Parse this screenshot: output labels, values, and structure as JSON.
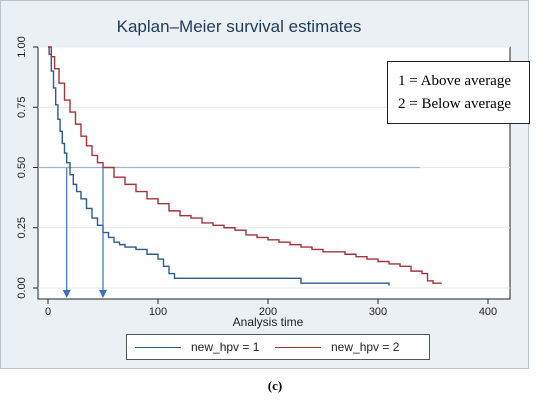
{
  "chart_data": {
    "type": "line",
    "title": "Kaplan–Meier survival estimates",
    "xlabel": "Analysis time",
    "ylabel": "",
    "xlim": [
      0,
      400
    ],
    "ylim": [
      0,
      1
    ],
    "x_ticks": [
      "0",
      "100",
      "200",
      "300",
      "400"
    ],
    "y_ticks": [
      "0.00",
      "0.25",
      "0.50",
      "0.75",
      "1.00"
    ],
    "x_tick_values": [
      0,
      100,
      200,
      300,
      400
    ],
    "y_tick_values": [
      0,
      0.25,
      0.5,
      0.75,
      1.0
    ],
    "grid": true,
    "series": [
      {
        "name": "new_hpv = 1",
        "color": "#2b5b8a",
        "points": [
          [
            0,
            1.0
          ],
          [
            1,
            0.97
          ],
          [
            3,
            0.9
          ],
          [
            5,
            0.83
          ],
          [
            7,
            0.76
          ],
          [
            9,
            0.7
          ],
          [
            11,
            0.65
          ],
          [
            13,
            0.6
          ],
          [
            15,
            0.56
          ],
          [
            17,
            0.52
          ],
          [
            20,
            0.47
          ],
          [
            23,
            0.43
          ],
          [
            26,
            0.4
          ],
          [
            30,
            0.37
          ],
          [
            35,
            0.33
          ],
          [
            40,
            0.29
          ],
          [
            45,
            0.26
          ],
          [
            50,
            0.23
          ],
          [
            55,
            0.21
          ],
          [
            60,
            0.19
          ],
          [
            65,
            0.18
          ],
          [
            70,
            0.17
          ],
          [
            80,
            0.16
          ],
          [
            90,
            0.14
          ],
          [
            100,
            0.12
          ],
          [
            105,
            0.09
          ],
          [
            110,
            0.06
          ],
          [
            115,
            0.04
          ],
          [
            130,
            0.04
          ],
          [
            200,
            0.04
          ],
          [
            228,
            0.04
          ],
          [
            230,
            0.02
          ],
          [
            300,
            0.02
          ],
          [
            310,
            0.01
          ]
        ]
      },
      {
        "name": "new_hpv = 2",
        "color": "#a5333a",
        "points": [
          [
            0,
            1.0
          ],
          [
            3,
            0.96
          ],
          [
            6,
            0.91
          ],
          [
            10,
            0.85
          ],
          [
            15,
            0.78
          ],
          [
            20,
            0.73
          ],
          [
            25,
            0.68
          ],
          [
            30,
            0.63
          ],
          [
            35,
            0.59
          ],
          [
            40,
            0.55
          ],
          [
            45,
            0.52
          ],
          [
            50,
            0.5
          ],
          [
            60,
            0.46
          ],
          [
            70,
            0.43
          ],
          [
            80,
            0.4
          ],
          [
            90,
            0.37
          ],
          [
            100,
            0.35
          ],
          [
            110,
            0.32
          ],
          [
            120,
            0.3
          ],
          [
            130,
            0.29
          ],
          [
            140,
            0.27
          ],
          [
            150,
            0.26
          ],
          [
            160,
            0.25
          ],
          [
            170,
            0.24
          ],
          [
            180,
            0.22
          ],
          [
            190,
            0.21
          ],
          [
            200,
            0.2
          ],
          [
            210,
            0.19
          ],
          [
            220,
            0.18
          ],
          [
            230,
            0.17
          ],
          [
            240,
            0.16
          ],
          [
            250,
            0.15
          ],
          [
            260,
            0.15
          ],
          [
            270,
            0.14
          ],
          [
            280,
            0.13
          ],
          [
            290,
            0.12
          ],
          [
            300,
            0.11
          ],
          [
            310,
            0.1
          ],
          [
            320,
            0.09
          ],
          [
            330,
            0.07
          ],
          [
            340,
            0.06
          ],
          [
            345,
            0.03
          ],
          [
            350,
            0.02
          ],
          [
            358,
            0.02
          ]
        ]
      }
    ],
    "reference_line": {
      "y": 0.5,
      "x_end": 338,
      "color": "#9fb3cc"
    },
    "median_markers": [
      {
        "x": 17,
        "y": 0.5,
        "color": "#3a6fc4"
      },
      {
        "x": 50,
        "y": 0.5,
        "color": "#3a6fc4"
      }
    ],
    "legend": {
      "placement": "bottom",
      "entries": [
        "new_hpv = 1",
        "new_hpv = 2"
      ]
    }
  },
  "annotation": {
    "line1": "1 = Above average",
    "line2": "2 = Below average"
  },
  "caption": "(c)"
}
